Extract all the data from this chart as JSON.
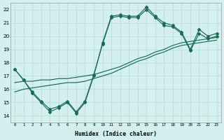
{
  "xlabel": "Humidex (Indice chaleur)",
  "bg_color": "#d4f0ee",
  "grid_color": "#b8d8d4",
  "line_color": "#1a6b5a",
  "xlim": [
    -0.5,
    23.5
  ],
  "ylim": [
    13.5,
    22.5
  ],
  "ytick_vals": [
    14,
    15,
    16,
    17,
    18,
    19,
    20,
    21,
    22
  ],
  "xtick_labels": [
    "0",
    "1",
    "2",
    "3",
    "4",
    "5",
    "6",
    "7",
    "8",
    "9",
    "10",
    "11",
    "12",
    "13",
    "14",
    "15",
    "16",
    "17",
    "18",
    "19",
    "20",
    "21",
    "22",
    "23"
  ],
  "curve1_x": [
    0,
    1,
    2,
    3,
    4,
    5,
    6,
    7,
    8,
    9,
    10,
    11,
    12,
    13,
    14,
    15,
    16,
    17,
    18,
    19,
    20,
    21,
    22,
    23
  ],
  "curve1_y": [
    17.5,
    16.7,
    15.7,
    15.0,
    14.3,
    14.6,
    15.0,
    14.2,
    15.0,
    17.0,
    19.5,
    21.5,
    21.6,
    21.5,
    21.5,
    22.2,
    21.5,
    21.0,
    20.8,
    20.3,
    19.0,
    20.5,
    20.0,
    20.2
  ],
  "curve2_x": [
    0,
    1,
    2,
    3,
    4,
    5,
    6,
    7,
    8,
    9,
    10,
    11,
    12,
    13,
    14,
    15,
    16,
    17,
    18,
    19,
    20,
    21,
    22,
    23
  ],
  "curve2_y": [
    17.5,
    16.7,
    15.8,
    15.1,
    14.5,
    14.7,
    15.1,
    14.3,
    15.1,
    17.1,
    19.4,
    21.4,
    21.5,
    21.4,
    21.4,
    22.0,
    21.4,
    20.8,
    20.7,
    20.2,
    18.9,
    20.2,
    19.8,
    20.0
  ],
  "curve3_x": [
    0,
    1,
    2,
    3,
    4,
    5,
    6,
    7,
    8,
    9,
    10,
    11,
    12,
    13,
    14,
    15,
    16,
    17,
    18,
    19,
    20,
    21,
    22,
    23
  ],
  "curve3_y": [
    16.5,
    16.6,
    16.6,
    16.7,
    16.7,
    16.8,
    16.8,
    16.9,
    17.0,
    17.1,
    17.3,
    17.5,
    17.7,
    18.0,
    18.3,
    18.5,
    18.8,
    19.0,
    19.3,
    19.5,
    19.6,
    19.7,
    19.8,
    19.9
  ],
  "curve4_x": [
    0,
    1,
    2,
    3,
    4,
    5,
    6,
    7,
    8,
    9,
    10,
    11,
    12,
    13,
    14,
    15,
    16,
    17,
    18,
    19,
    20,
    21,
    22,
    23
  ],
  "curve4_y": [
    15.8,
    16.0,
    16.1,
    16.2,
    16.3,
    16.4,
    16.5,
    16.5,
    16.6,
    16.8,
    17.0,
    17.2,
    17.5,
    17.8,
    18.1,
    18.3,
    18.6,
    18.8,
    19.1,
    19.3,
    19.4,
    19.5,
    19.6,
    19.7
  ]
}
